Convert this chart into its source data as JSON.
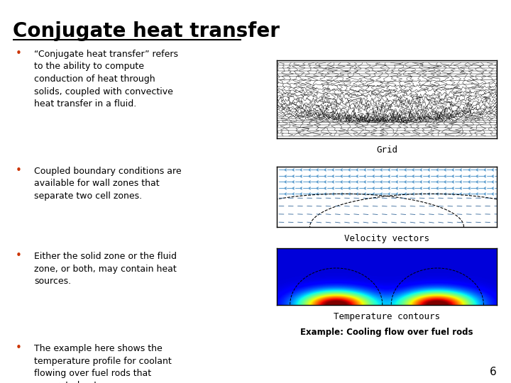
{
  "title": "Conjugate heat transfer",
  "title_color": "#000000",
  "background_color": "#ffffff",
  "bullet_color": "#cc3300",
  "text_color": "#000000",
  "bullets": [
    "“Conjugate heat transfer” refers\nto the ability to compute\nconduction of heat through\nsolids, coupled with convective\nheat transfer in a fluid.",
    "Coupled boundary conditions are\navailable for wall zones that\nseparate two cell zones.",
    "Either the solid zone or the fluid\nzone, or both, may contain heat\nsources.",
    "The example here shows the\ntemperature profile for coolant\nflowing over fuel rods that\ngenerate heat."
  ],
  "image_labels": [
    "Grid",
    "Velocity vectors",
    "Temperature contours"
  ],
  "example_label": "Example: Cooling flow over fuel rods",
  "page_number": "6",
  "fig_width": 7.2,
  "fig_height": 5.4,
  "dpi": 100
}
